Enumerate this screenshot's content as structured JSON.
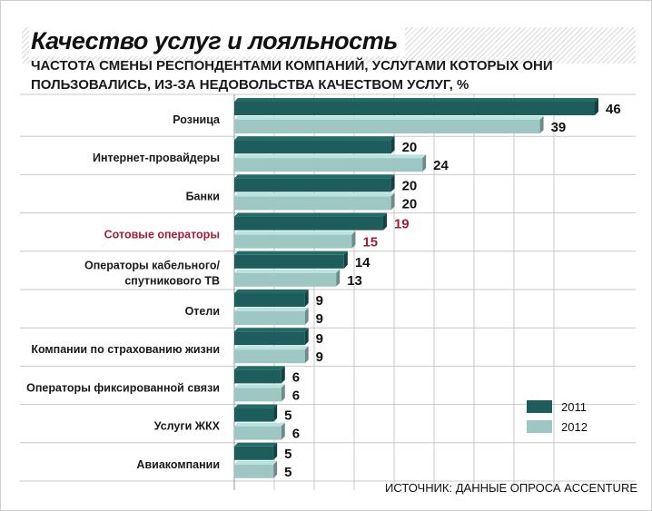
{
  "title": "Качество услуг и лояльность",
  "subtitle": "ЧАСТОТА СМЕНЫ РЕСПОНДЕНТАМИ КОМПАНИЙ, УСЛУГАМИ КОТОРЫХ ОНИ ПОЛЬЗОВАЛИСЬ, ИЗ-ЗА НЕДОВОЛЬСТВА КАЧЕСТВОМ УСЛУГ, %",
  "source": "ИСТОЧНИК: ДАННЫЕ ОПРОСА ACCENTURE",
  "colors": {
    "series_2011": "#1d5d5b",
    "series_2012": "#9ec6c2",
    "highlight": "#a0203a",
    "grid": "#c8c8c8"
  },
  "highlight_category": "Сотовые операторы",
  "chart_data": {
    "type": "bar",
    "orientation": "horizontal",
    "categories": [
      "Розница",
      "Интернет-провайдеры",
      "Банки",
      "Сотовые операторы",
      "Операторы кабельного/ спутникового ТВ",
      "Отели",
      "Компании по страхованию жизни",
      "Операторы фиксированной связи",
      "Услуги ЖКХ",
      "Авиакомпании"
    ],
    "series": [
      {
        "name": "2011",
        "values": [
          46,
          20,
          20,
          19,
          14,
          9,
          9,
          6,
          5,
          5
        ]
      },
      {
        "name": "2012",
        "values": [
          39,
          24,
          20,
          15,
          13,
          9,
          9,
          6,
          6,
          5
        ]
      }
    ],
    "xlim": [
      0,
      46
    ],
    "grid": true,
    "legend_position": "bottom-right"
  }
}
